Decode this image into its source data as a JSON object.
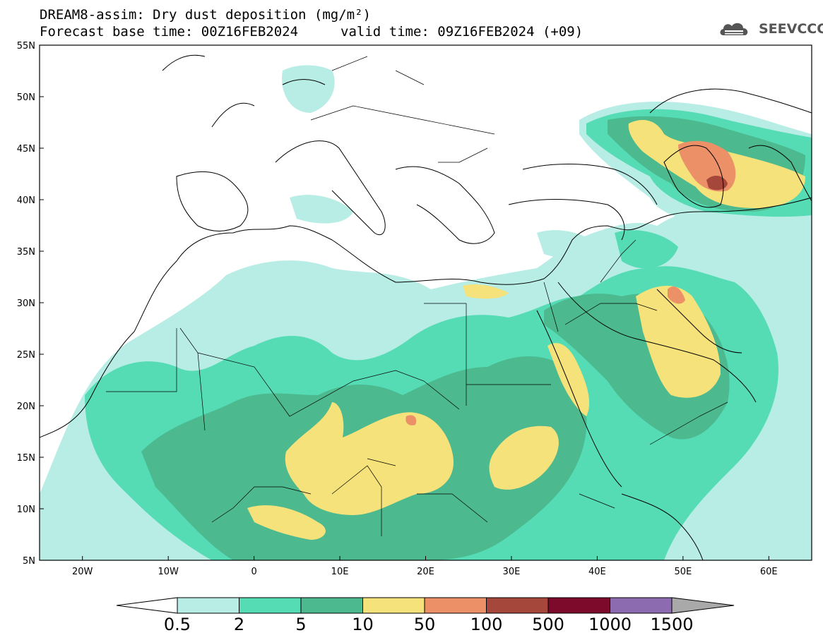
{
  "header": {
    "title_line1": "DREAM8-assim: Dry dust deposition (mg/m²)",
    "title_line2": "Forecast base time: 00Z16FEB2024",
    "valid_time": "valid time: 09Z16FEB2024 (+09)",
    "logo_text": "SEEVCCC"
  },
  "map": {
    "lon_range": [
      -25,
      65
    ],
    "lat_range": [
      5,
      55
    ],
    "lat_ticks": [
      {
        "value": 55,
        "label": "55N"
      },
      {
        "value": 50,
        "label": "50N"
      },
      {
        "value": 45,
        "label": "45N"
      },
      {
        "value": 40,
        "label": "40N"
      },
      {
        "value": 35,
        "label": "35N"
      },
      {
        "value": 30,
        "label": "30N"
      },
      {
        "value": 25,
        "label": "25N"
      },
      {
        "value": 20,
        "label": "20N"
      },
      {
        "value": 15,
        "label": "15N"
      },
      {
        "value": 10,
        "label": "10N"
      },
      {
        "value": 5,
        "label": "5N"
      }
    ],
    "lon_ticks": [
      {
        "value": -20,
        "label": "20W"
      },
      {
        "value": -10,
        "label": "10W"
      },
      {
        "value": 0,
        "label": "0"
      },
      {
        "value": 10,
        "label": "10E"
      },
      {
        "value": 20,
        "label": "20E"
      },
      {
        "value": 30,
        "label": "30E"
      },
      {
        "value": 40,
        "label": "40E"
      },
      {
        "value": 50,
        "label": "50E"
      },
      {
        "value": 60,
        "label": "60E"
      }
    ]
  },
  "colorbar": {
    "low_arrow_color": "#ffffff",
    "high_arrow_color": "#a9a9a9",
    "colors": [
      "#b8ede6",
      "#55dcb5",
      "#4cb98f",
      "#f5e27a",
      "#ec9068",
      "#a6473c",
      "#7d0a2a",
      "#8c6bb1"
    ],
    "labels": [
      "0.5",
      "2",
      "5",
      "10",
      "50",
      "100",
      "500",
      "1000",
      "1500"
    ]
  }
}
